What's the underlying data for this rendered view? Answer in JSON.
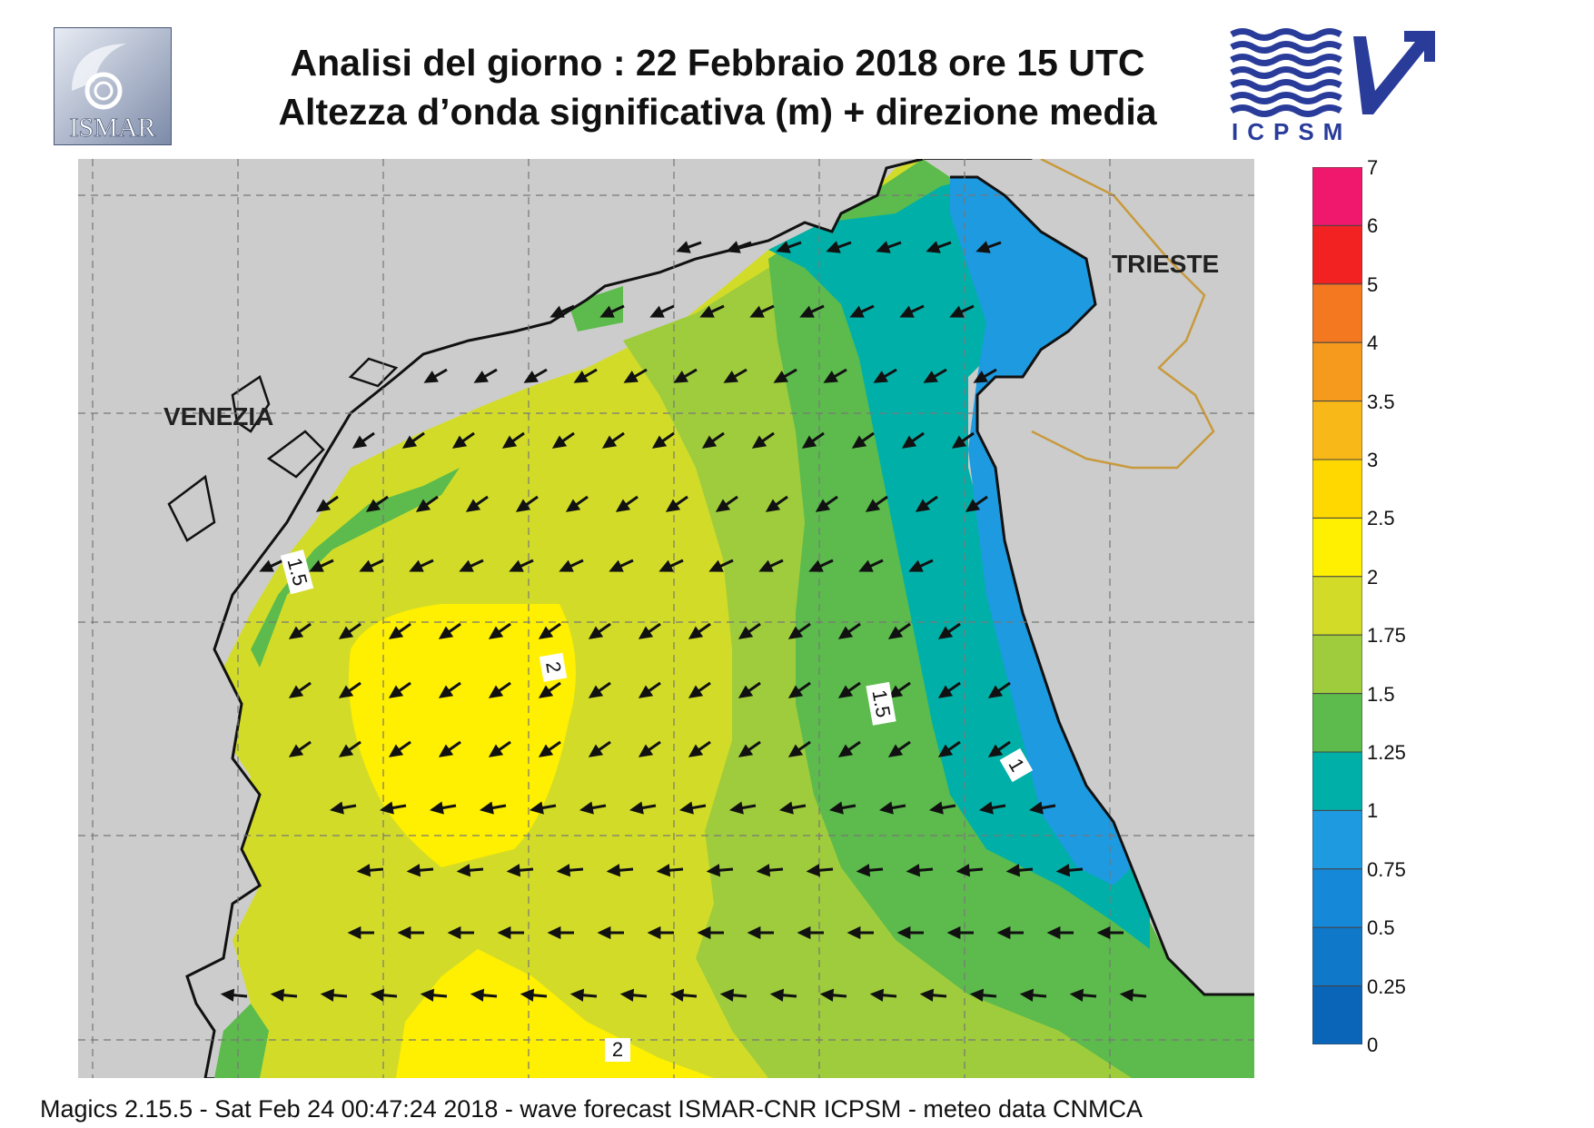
{
  "header": {
    "title_line1": "Analisi del giorno :  22  Febbraio 2018   ore 15 UTC",
    "title_line2": "Altezza d’onda significativa (m) + direzione media"
  },
  "logos": {
    "left_text": "ISMAR",
    "right_text": "ICPSM"
  },
  "map": {
    "cities": [
      "VENEZIA",
      "TRIESTE"
    ],
    "contour_labels": [
      "1.5",
      "2",
      "1.5",
      "1",
      "2"
    ],
    "colors": {
      "land": "#cccccc",
      "c_075_1": "#1e9ae0",
      "c_1_125": "#00b0a8",
      "c_125_15": "#5cbb4c",
      "c_15_175": "#9fcc3c",
      "c_175_2": "#d2dc28",
      "c_2_25": "#ffef00",
      "border": "#c89a3c"
    }
  },
  "colorbar": {
    "ticks": [
      "7",
      "6",
      "5",
      "4",
      "3.5",
      "3",
      "2.5",
      "2",
      "1.75",
      "1.5",
      "1.25",
      "1",
      "0.75",
      "0.5",
      "0.25",
      "0"
    ],
    "colors": [
      "#f0186c",
      "#f22222",
      "#f47820",
      "#f59a1c",
      "#f7b818",
      "#ffd800",
      "#ffef00",
      "#d2dc28",
      "#9fcc3c",
      "#5cbb4c",
      "#00b0a8",
      "#1e9ae0",
      "#1688d8",
      "#1078c8",
      "#0a64b8"
    ]
  },
  "footer": {
    "text": "Magics 2.15.5 - Sat Feb 24 00:47:24 2018 - wave forecast  ISMAR-CNR  ICPSM - meteo data    CNMCA"
  }
}
